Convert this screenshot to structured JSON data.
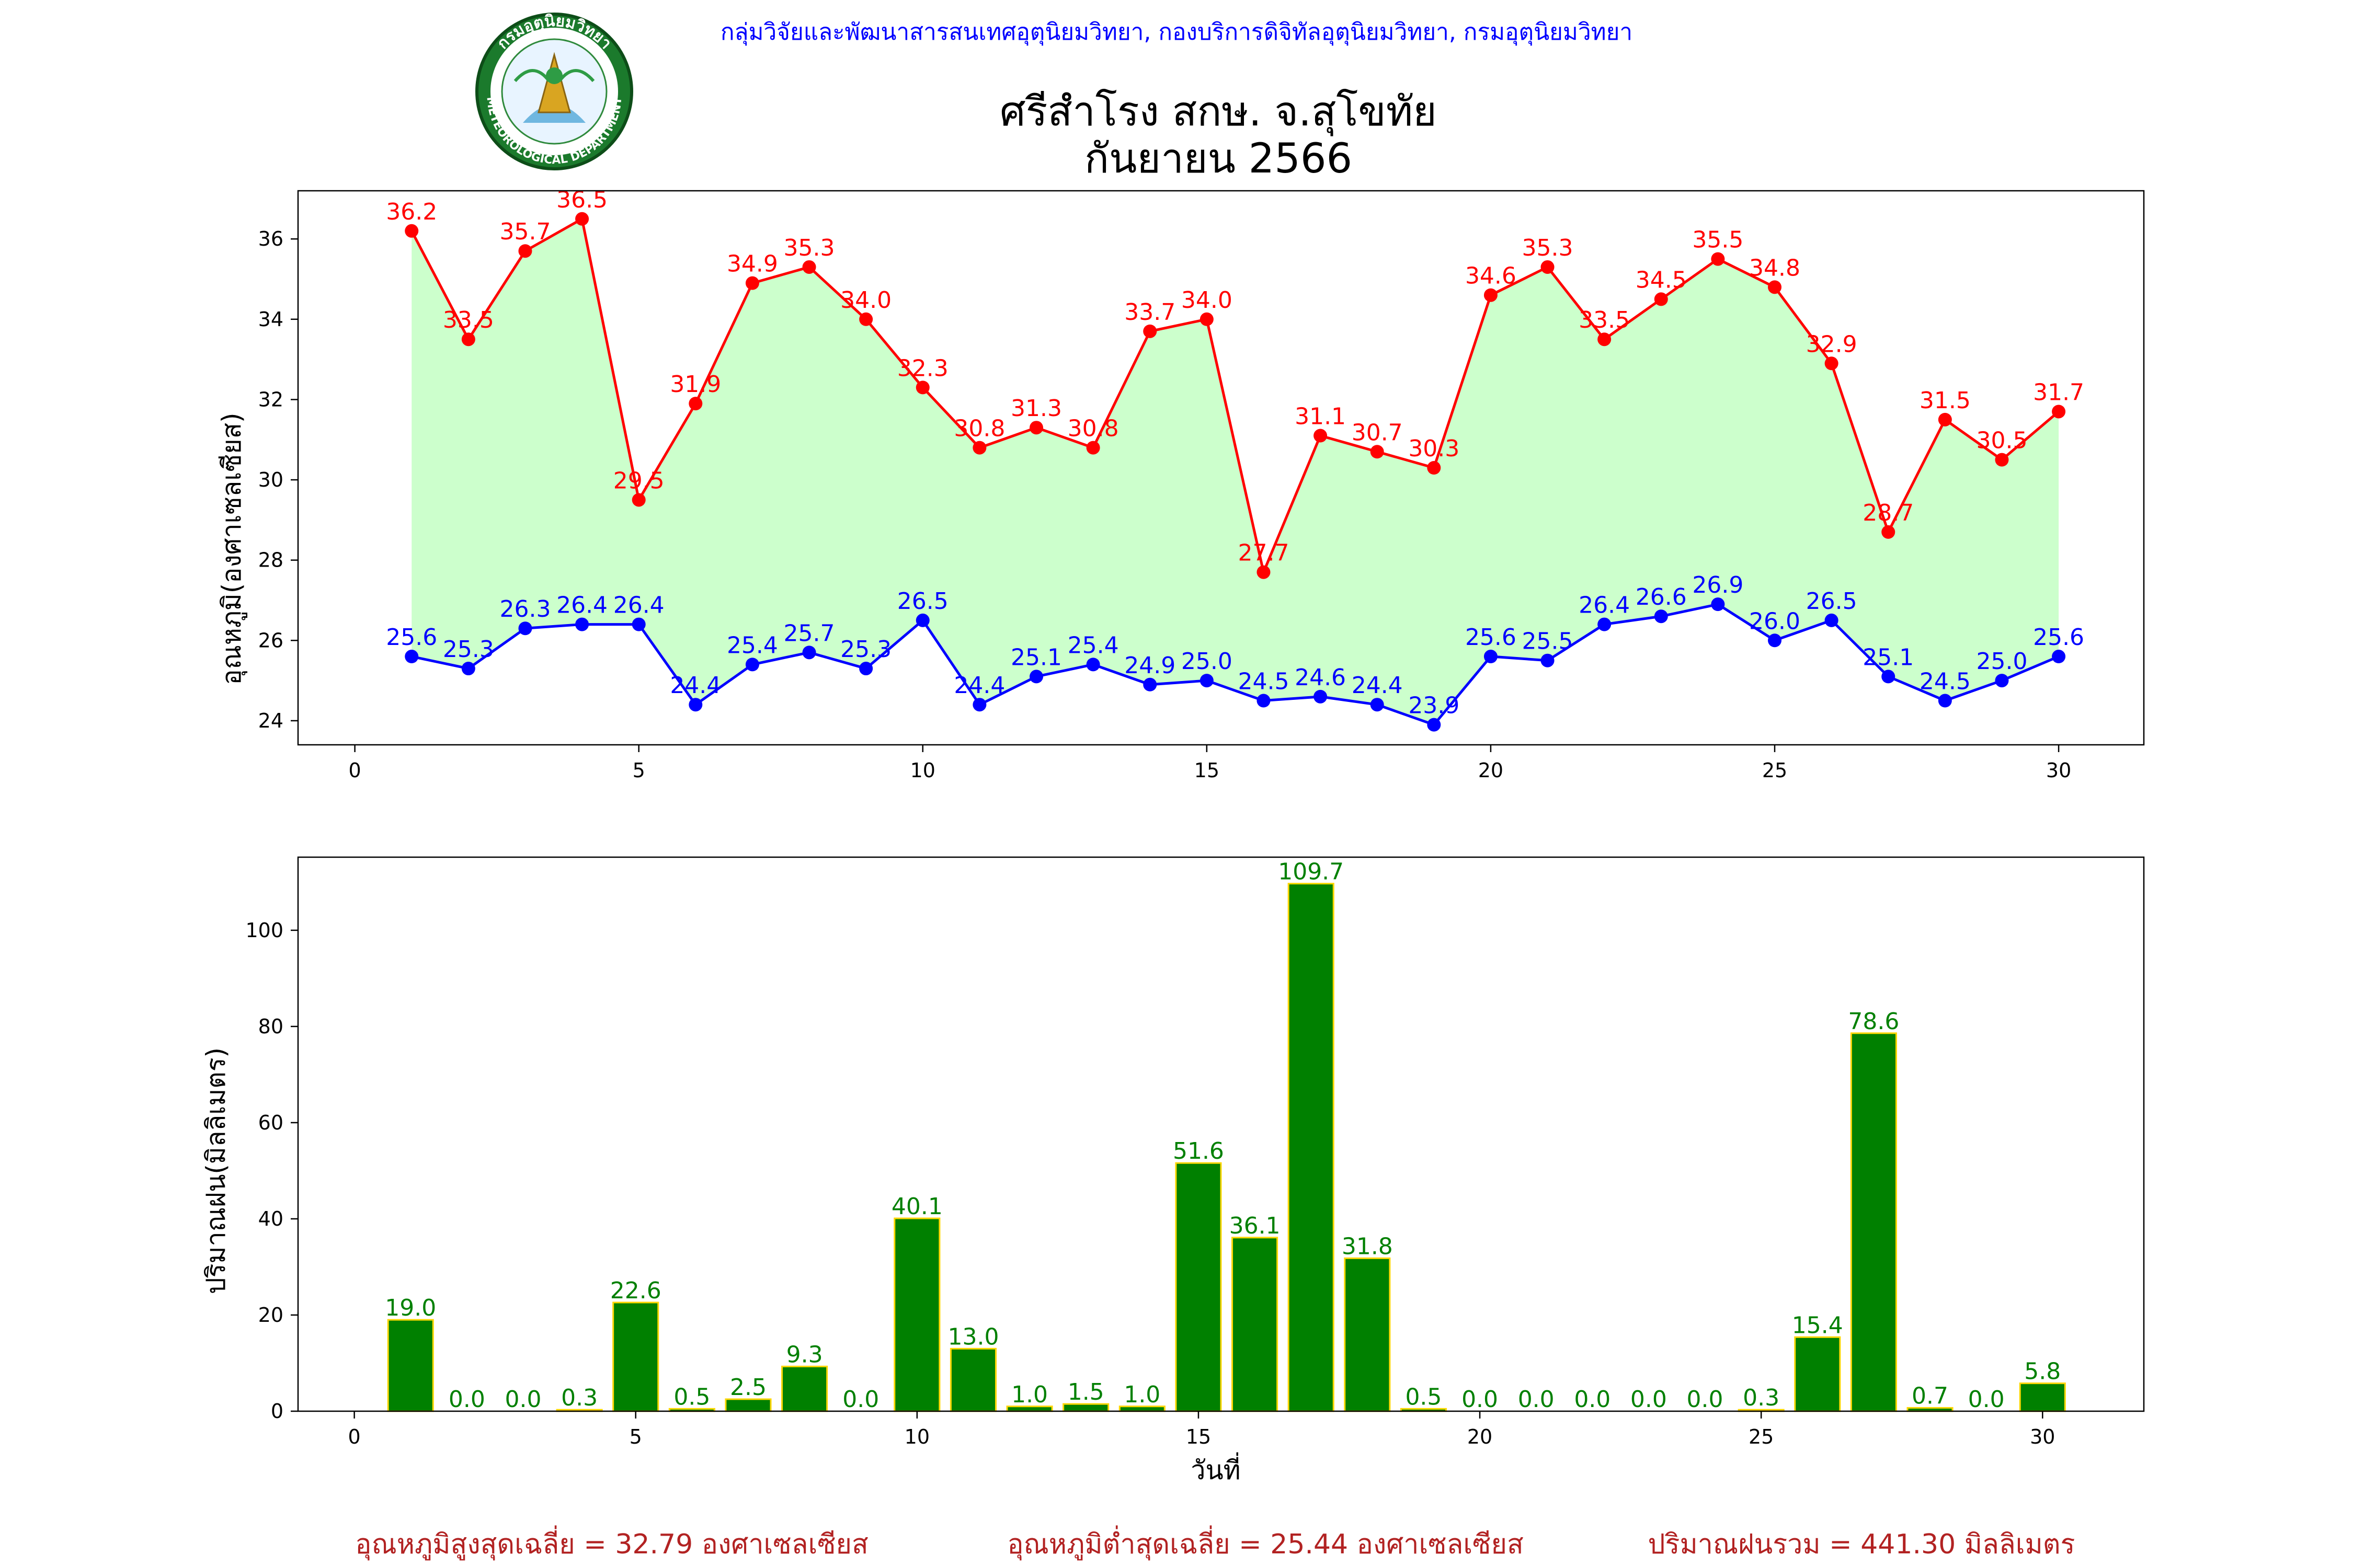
{
  "header": {
    "org_line": "กลุ่มวิจัยและพัฒนาสารสนเทศอุตุนิยมวิทยา, กองบริการดิจิทัลอุตุนิยมวิทยา, กรมอุตุนิยมวิทยา",
    "title_line1": "ศรีสำโรง สกษ. จ.สุโขทัย",
    "title_line2": "กันยายน 2566",
    "logo_text_top": "กรมอุตุนิยมวิทยา",
    "logo_text_bottom": "METEOROLOGICAL DEPARTMENT"
  },
  "footer": {
    "avg_max": "อุณหภูมิสูงสุดเฉลี่ย = 32.79 องศาเซลเซียส",
    "avg_min": "อุณหภูมิต่ำสุดเฉลี่ย = 25.44 องศาเซลเซียส",
    "total_rain": "ปริมาณฝนรวม = 441.30 มิลลิเมตร"
  },
  "colors": {
    "max_line": "#ff0000",
    "min_line": "#0000ff",
    "fill_between": "#ccffcc",
    "bar_fill": "#008000",
    "bar_edge": "#ffd700",
    "bar_label": "#008000",
    "org_line": "#0000ff",
    "footer_text": "#b22222"
  },
  "chart_data": [
    {
      "type": "line",
      "ylabel": "อุณหภูมิ(องศาเซลเซียส)",
      "xlabel": "",
      "xlim": [
        -1,
        31.5
      ],
      "ylim": [
        23.4,
        37.2
      ],
      "xticks": [
        0,
        5,
        10,
        15,
        20,
        25,
        30
      ],
      "yticks": [
        24,
        26,
        28,
        30,
        32,
        34,
        36
      ],
      "x": [
        1,
        2,
        3,
        4,
        5,
        6,
        7,
        8,
        9,
        10,
        11,
        12,
        13,
        14,
        15,
        16,
        17,
        18,
        19,
        20,
        21,
        22,
        23,
        24,
        25,
        26,
        27,
        28,
        29,
        30
      ],
      "fill_between": true,
      "series": [
        {
          "key": "max",
          "values": [
            36.2,
            33.5,
            35.7,
            36.5,
            29.5,
            31.9,
            34.9,
            35.3,
            34.0,
            32.3,
            30.8,
            31.3,
            30.8,
            33.7,
            34.0,
            27.7,
            31.1,
            30.7,
            30.3,
            34.6,
            35.3,
            33.5,
            34.5,
            35.5,
            34.8,
            32.9,
            28.7,
            31.5,
            30.5,
            31.7
          ]
        },
        {
          "key": "min",
          "values": [
            25.6,
            25.3,
            26.3,
            26.4,
            26.4,
            24.4,
            25.4,
            25.7,
            25.3,
            26.5,
            24.4,
            25.1,
            25.4,
            24.9,
            25.0,
            24.5,
            24.6,
            24.4,
            23.9,
            25.6,
            25.5,
            26.4,
            26.6,
            26.9,
            26.0,
            26.5,
            25.1,
            24.5,
            25.0,
            25.6
          ]
        }
      ]
    },
    {
      "type": "bar",
      "ylabel": "ปริมาณฝน(มิลลิเมตร)",
      "xlabel": "วันที่",
      "xlim": [
        -1,
        31.8
      ],
      "ylim": [
        0,
        115.2
      ],
      "xticks": [
        0,
        5,
        10,
        15,
        20,
        25,
        30
      ],
      "yticks": [
        0,
        20,
        40,
        60,
        80,
        100
      ],
      "x": [
        1,
        2,
        3,
        4,
        5,
        6,
        7,
        8,
        9,
        10,
        11,
        12,
        13,
        14,
        15,
        16,
        17,
        18,
        19,
        20,
        21,
        22,
        23,
        24,
        25,
        26,
        27,
        28,
        29,
        30
      ],
      "values": [
        19.0,
        0.0,
        0.0,
        0.3,
        22.6,
        0.5,
        2.5,
        9.3,
        0.0,
        40.1,
        13.0,
        1.0,
        1.5,
        1.0,
        51.6,
        36.1,
        109.7,
        31.8,
        0.5,
        0.0,
        0.0,
        0.0,
        0.0,
        0.0,
        0.3,
        15.4,
        78.6,
        0.7,
        0.0,
        5.8
      ]
    }
  ]
}
